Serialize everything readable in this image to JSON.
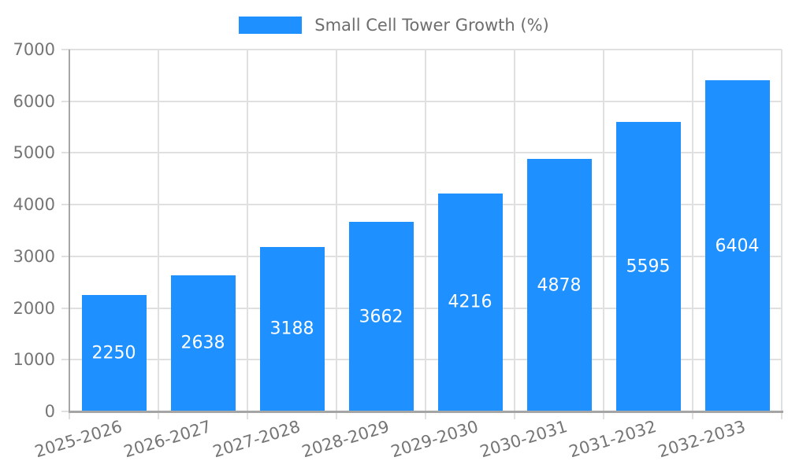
{
  "legend": {
    "label": "Small Cell Tower Growth (%)"
  },
  "chart_data": {
    "type": "bar",
    "title": "Small Cell Tower Growth (%)",
    "categories": [
      "2025-2026",
      "2026-2027",
      "2027-2028",
      "2028-2029",
      "2029-2030",
      "2030-2031",
      "2031-2032",
      "2032-2033"
    ],
    "values": [
      2250,
      2638,
      3188,
      3662,
      4216,
      4878,
      5595,
      6404
    ],
    "xlabel": "",
    "ylabel": "",
    "ylim": [
      0,
      7000
    ],
    "ytick_step": 1000,
    "yticks": [
      0,
      1000,
      2000,
      3000,
      4000,
      5000,
      6000,
      7000
    ],
    "grid": true,
    "legend_position": "top",
    "value_label_position": "inside-center",
    "colors": {
      "bar": "#1e90ff",
      "value_label": "#ffffff",
      "axis": "#a5a5a5",
      "grid": "#e0e0e0",
      "tick_text": "#757575",
      "legend_text": "#6e6e6e",
      "background": "#ffffff"
    }
  }
}
